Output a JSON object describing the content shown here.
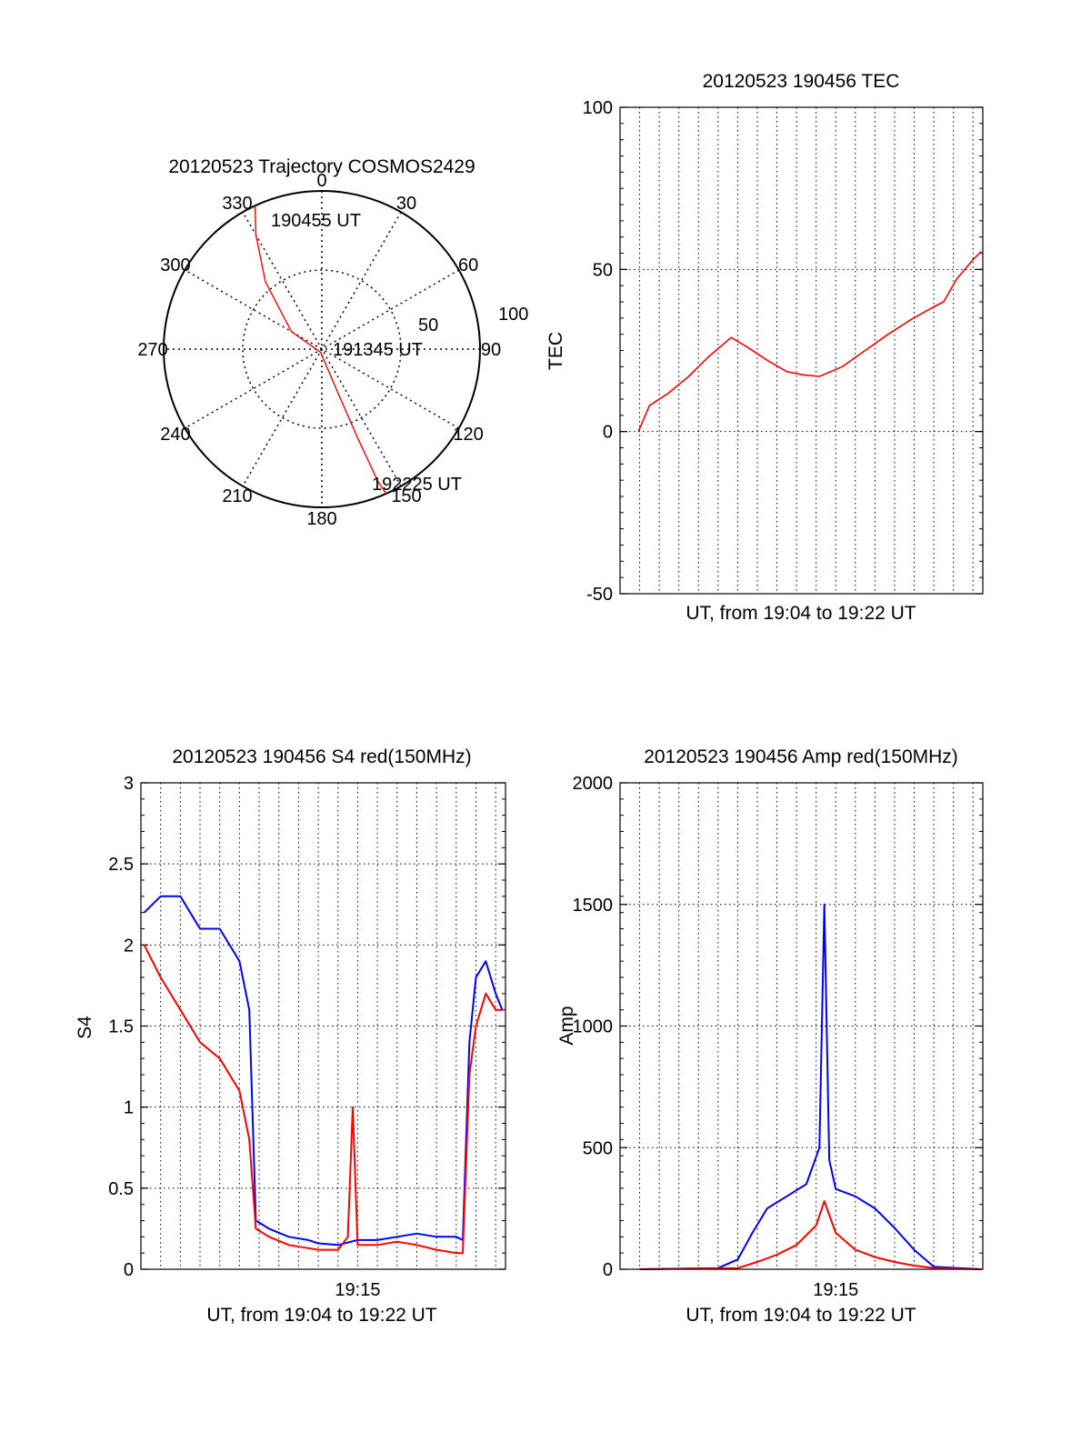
{
  "page": {
    "background": "#ffffff"
  },
  "colors": {
    "red": "#ff0000",
    "blue": "#0000ff",
    "axis": "#000000",
    "grid": "#000000"
  },
  "chart_data": [
    {
      "id": "trajectory",
      "type": "polar",
      "title": "20120523 Trajectory COSMOS2429",
      "angle_labels": [
        "0",
        "30",
        "60",
        "90",
        "120",
        "150",
        "180",
        "210",
        "240",
        "270",
        "300",
        "330"
      ],
      "radial_labels": [
        "50",
        "100"
      ],
      "grid": true,
      "track": {
        "color": "red",
        "points": [
          [
            335,
            90
          ],
          [
            330,
            75
          ],
          [
            320,
            50
          ],
          [
            300,
            20
          ],
          [
            200,
            2
          ],
          [
            160,
            25
          ],
          [
            158,
            55
          ],
          [
            157,
            82
          ],
          [
            156,
            90
          ]
        ]
      },
      "annotations": [
        {
          "text": "190455 UT",
          "az": 335,
          "r": 90
        },
        {
          "text": "191345 UT",
          "az": 180,
          "r": 0
        },
        {
          "text": "192225 UT",
          "az": 156,
          "r": 90
        }
      ]
    },
    {
      "id": "tec",
      "type": "line",
      "title": "20120523 190456 TEC",
      "xlabel": "UT, from 19:04 to 19:22 UT",
      "ylabel": "TEC",
      "xlim": [
        "19:04:00",
        "19:22:30"
      ],
      "ylim": [
        -50,
        100
      ],
      "yticks": [
        "-50",
        "0",
        "50",
        "100"
      ],
      "grid": true,
      "series": [
        {
          "color": "red",
          "x": [
            "19:04:56",
            "19:05:30",
            "19:06:30",
            "19:07:30",
            "19:08:30",
            "19:09:40",
            "19:10:30",
            "19:11:30",
            "19:12:30",
            "19:13:20",
            "19:14:10",
            "19:15:20",
            "19:16:30",
            "19:17:40",
            "19:18:50",
            "19:20:00",
            "19:20:30",
            "19:21:10",
            "19:22:00",
            "19:22:25"
          ],
          "values": [
            0,
            8,
            12,
            17,
            23,
            29,
            26,
            22,
            18.5,
            17.5,
            17,
            20,
            25,
            30,
            34.5,
            38.5,
            40,
            47,
            53,
            55.5
          ]
        }
      ]
    },
    {
      "id": "s4",
      "type": "line",
      "title": "20120523 190456 S4 red(150MHz)",
      "xlabel": "UT, from 19:04 to 19:22 UT",
      "ylabel": "S4",
      "xlim": [
        "19:04:00",
        "19:22:30"
      ],
      "ylim": [
        0,
        3
      ],
      "yticks": [
        "0",
        "0.5",
        "1",
        "1.5",
        "2",
        "2.5",
        "3"
      ],
      "xticks": [
        "19:15"
      ],
      "grid": true,
      "series": [
        {
          "color": "blue",
          "x": [
            "19:04:10",
            "19:05:00",
            "19:06:00",
            "19:07:00",
            "19:08:00",
            "19:09:00",
            "19:09:30",
            "19:09:50",
            "19:10:30",
            "19:11:30",
            "19:12:30",
            "19:13:00",
            "19:14:00",
            "19:15:00",
            "19:16:00",
            "19:17:00",
            "19:18:00",
            "19:19:00",
            "19:20:00",
            "19:20:20",
            "19:20:40",
            "19:21:00",
            "19:21:30",
            "19:22:00",
            "19:22:20"
          ],
          "values": [
            2.2,
            2.3,
            2.3,
            2.1,
            2.1,
            1.9,
            1.6,
            0.3,
            0.25,
            0.2,
            0.18,
            0.16,
            0.15,
            0.18,
            0.18,
            0.2,
            0.22,
            0.2,
            0.2,
            0.18,
            1.4,
            1.8,
            1.9,
            1.7,
            1.6
          ]
        },
        {
          "color": "red",
          "x": [
            "19:04:10",
            "19:05:00",
            "19:06:00",
            "19:07:00",
            "19:08:00",
            "19:09:00",
            "19:09:30",
            "19:09:50",
            "19:10:30",
            "19:11:30",
            "19:12:30",
            "19:13:00",
            "19:14:00",
            "19:14:30",
            "19:14:45",
            "19:15:00",
            "19:16:00",
            "19:17:00",
            "19:18:00",
            "19:19:00",
            "19:20:00",
            "19:20:20",
            "19:20:40",
            "19:21:00",
            "19:21:30",
            "19:22:00",
            "19:22:20"
          ],
          "values": [
            2.0,
            1.8,
            1.6,
            1.4,
            1.3,
            1.1,
            0.8,
            0.25,
            0.2,
            0.15,
            0.13,
            0.12,
            0.12,
            0.2,
            1.0,
            0.15,
            0.15,
            0.17,
            0.15,
            0.12,
            0.1,
            0.1,
            1.2,
            1.5,
            1.7,
            1.6,
            1.6
          ]
        }
      ]
    },
    {
      "id": "amp",
      "type": "line",
      "title": "20120523 190456 Amp red(150MHz)",
      "xlabel": "UT, from 19:04 to 19:22 UT",
      "ylabel": "Amp",
      "xlim": [
        "19:04:00",
        "19:22:30"
      ],
      "ylim": [
        0,
        2000
      ],
      "yticks": [
        "0",
        "500",
        "1000",
        "1500",
        "2000"
      ],
      "xticks": [
        "19:15"
      ],
      "grid": true,
      "series": [
        {
          "color": "blue",
          "x": [
            "19:05:00",
            "19:09:00",
            "19:10:00",
            "19:10:45",
            "19:11:30",
            "19:12:30",
            "19:13:30",
            "19:14:10",
            "19:14:25",
            "19:14:40",
            "19:15:00",
            "19:16:00",
            "19:17:00",
            "19:18:00",
            "19:19:00",
            "19:20:00",
            "19:22:25"
          ],
          "values": [
            0,
            5,
            40,
            150,
            250,
            300,
            350,
            500,
            1500,
            450,
            330,
            300,
            250,
            170,
            80,
            10,
            0
          ]
        },
        {
          "color": "red",
          "x": [
            "19:05:00",
            "19:10:00",
            "19:11:00",
            "19:12:00",
            "19:13:00",
            "19:14:00",
            "19:14:25",
            "19:15:00",
            "19:16:00",
            "19:17:00",
            "19:18:00",
            "19:19:00",
            "19:20:00",
            "19:22:25"
          ],
          "values": [
            0,
            5,
            30,
            60,
            100,
            180,
            280,
            150,
            80,
            50,
            30,
            15,
            5,
            0
          ]
        }
      ]
    }
  ]
}
